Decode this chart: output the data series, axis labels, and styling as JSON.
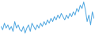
{
  "values": [
    5,
    3,
    7,
    4,
    6,
    3,
    5,
    2,
    8,
    4,
    6,
    3,
    2,
    5,
    1,
    4,
    6,
    2,
    7,
    5,
    3,
    6,
    4,
    7,
    5,
    8,
    6,
    9,
    7,
    10,
    8,
    11,
    9,
    12,
    10,
    13,
    11,
    9,
    12,
    10,
    13,
    11,
    14,
    12,
    16,
    14,
    18,
    16,
    20,
    15,
    8,
    12,
    6,
    14,
    10
  ],
  "line_color": "#4da6e0",
  "background_color": "#ffffff",
  "linewidth": 0.7
}
